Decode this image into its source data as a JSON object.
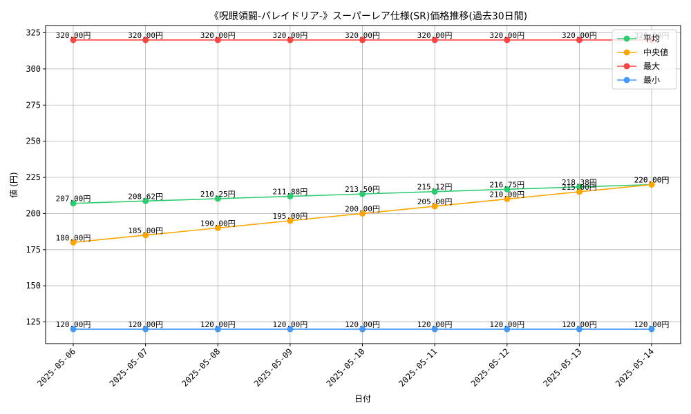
{
  "chart_data": {
    "type": "line",
    "title": "《呪眼領闘-パレイドリア-》スーパーレア仕様(SR)価格推移(過去30日間)",
    "xlabel": "日付",
    "ylabel": "値 (円)",
    "ylim": [
      110,
      330
    ],
    "yticks": [
      125,
      150,
      175,
      200,
      225,
      250,
      275,
      300,
      325
    ],
    "grid": true,
    "legend_position": "top-right",
    "categories": [
      "2025-05-06",
      "2025-05-07",
      "2025-05-08",
      "2025-05-09",
      "2025-05-10",
      "2025-05-11",
      "2025-05-12",
      "2025-05-13",
      "2025-05-14"
    ],
    "series": [
      {
        "name": "平均",
        "color": "#2ecc71",
        "values": [
          207.0,
          208.62,
          210.25,
          211.88,
          213.5,
          215.12,
          216.75,
          218.38,
          220.0
        ],
        "labels": [
          "207.00円",
          "208.62円",
          "210.25円",
          "211.88円",
          "213.50円",
          "215.12円",
          "216.75円",
          "218.38円",
          "220.00円"
        ]
      },
      {
        "name": "中央値",
        "color": "#ffa500",
        "values": [
          180.0,
          185.0,
          190.0,
          195.0,
          200.0,
          205.0,
          210.0,
          215.0,
          220.0
        ],
        "labels": [
          "180.00円",
          "185.00円",
          "190.00円",
          "195.00円",
          "200.00円",
          "205.00円",
          "210.00円",
          "215.00円",
          "220.00円"
        ]
      },
      {
        "name": "最大",
        "color": "#ff4444",
        "values": [
          320.0,
          320.0,
          320.0,
          320.0,
          320.0,
          320.0,
          320.0,
          320.0,
          320.0
        ],
        "labels": [
          "320.00円",
          "320.00円",
          "320.00円",
          "320.00円",
          "320.00円",
          "320.00円",
          "320.00円",
          "320.00円",
          "320.00円"
        ]
      },
      {
        "name": "最小",
        "color": "#4499ff",
        "values": [
          120.0,
          120.0,
          120.0,
          120.0,
          120.0,
          120.0,
          120.0,
          120.0,
          120.0
        ],
        "labels": [
          "120.00円",
          "120.00円",
          "120.00円",
          "120.00円",
          "120.00円",
          "120.00円",
          "120.00円",
          "120.00円",
          "120.00円"
        ]
      }
    ]
  }
}
